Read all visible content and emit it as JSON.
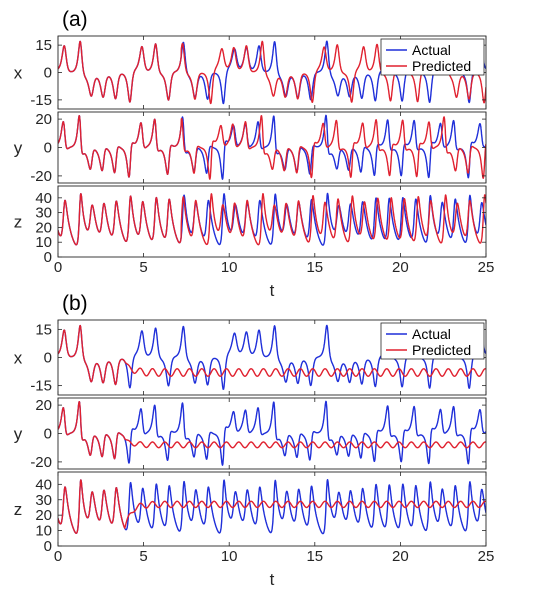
{
  "chart_data": [
    {
      "type": "line",
      "panel_label": "(a)",
      "xlabel": "t",
      "xlim": [
        0,
        25
      ],
      "xticks": [
        0,
        5,
        10,
        15,
        20,
        25
      ],
      "legend": {
        "placement": "top-right",
        "entries": [
          "Actual",
          "Predicted"
        ]
      },
      "colors": {
        "Actual": "#1f2fd9",
        "Predicted": "#e0212f"
      },
      "divergence_time": 7.2,
      "subplots": [
        {
          "ylabel": "x",
          "ylim": [
            -20,
            20
          ],
          "yticks": [
            15,
            0,
            -15
          ]
        },
        {
          "ylabel": "y",
          "ylim": [
            -25,
            25
          ],
          "yticks": [
            20,
            0,
            -20
          ]
        },
        {
          "ylabel": "z",
          "ylim": [
            0,
            48
          ],
          "yticks": [
            40,
            30,
            20,
            10,
            0
          ]
        }
      ],
      "series": [
        {
          "name": "Actual"
        },
        {
          "name": "Predicted"
        }
      ]
    },
    {
      "type": "line",
      "panel_label": "(b)",
      "xlabel": "t",
      "xlim": [
        0,
        25
      ],
      "xticks": [
        0,
        5,
        10,
        15,
        20,
        25
      ],
      "legend": {
        "placement": "top-right",
        "entries": [
          "Actual",
          "Predicted"
        ]
      },
      "colors": {
        "Actual": "#1f2fd9",
        "Predicted": "#e0212f"
      },
      "divergence_time": 3.9,
      "predicted_steady_state": {
        "x": -8,
        "y": -8,
        "z": 27,
        "oscillation_amplitude": 2
      },
      "subplots": [
        {
          "ylabel": "x",
          "ylim": [
            -20,
            20
          ],
          "yticks": [
            15,
            0,
            -15
          ]
        },
        {
          "ylabel": "y",
          "ylim": [
            -25,
            25
          ],
          "yticks": [
            20,
            0,
            -20
          ]
        },
        {
          "ylabel": "z",
          "ylim": [
            0,
            48
          ],
          "yticks": [
            40,
            30,
            20,
            10,
            0
          ]
        }
      ],
      "series": [
        {
          "name": "Actual"
        },
        {
          "name": "Predicted"
        }
      ]
    }
  ]
}
